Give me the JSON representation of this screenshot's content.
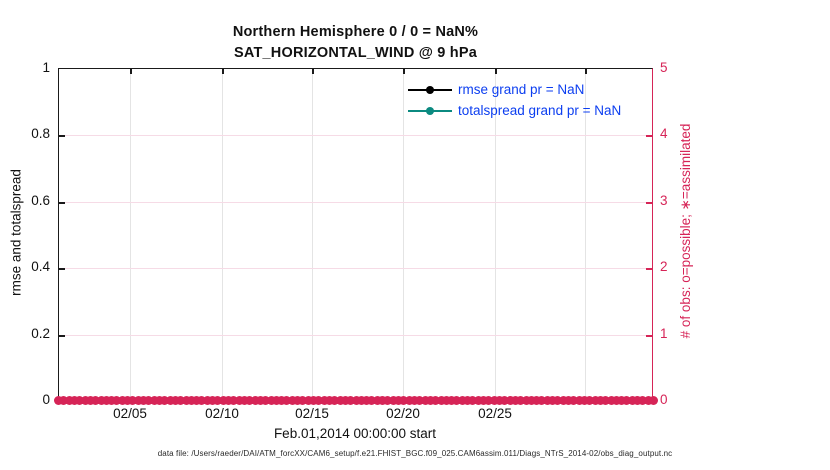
{
  "figure": {
    "title_line1": "Northern Hemisphere 0 / 0 = NaN%",
    "title_line2": "SAT_HORIZONTAL_WIND @ 9 hPa",
    "footer": "data file: /Users/raeder/DAI/ATM_forcXX/CAM6_setup/f.e21.FHIST_BGC.f09_025.CAM6assim.011/Diags_NTrS_2014-02/obs_diag_output.nc"
  },
  "axes": {
    "left_label": "rmse and totalspread",
    "right_label": "# of obs: o=possible; ∗=assimilated",
    "xlabel": "Feb.01,2014 00:00:00 start",
    "x_tick_labels": [
      "02/05",
      "02/10",
      "02/15",
      "02/20",
      "02/25"
    ],
    "y_left_ticks": [
      "1",
      "0.8",
      "0.6",
      "0.4",
      "0.2",
      "0"
    ],
    "y_right_ticks": [
      "5",
      "4",
      "3",
      "2",
      "1",
      "0"
    ]
  },
  "legend": {
    "text_color": "#0c3ef0",
    "items": [
      {
        "label": "rmse grand pr = NaN",
        "color": "#000000"
      },
      {
        "label": "totalspread grand pr = NaN",
        "color": "#0b8a80"
      }
    ]
  },
  "obs_markers": {
    "count": 113,
    "color": "#d62457",
    "shape": "circle",
    "value": 0
  },
  "colors": {
    "right_axis_crimson": "#d62457",
    "left_axis_black": "#1a1a1a",
    "grid_vertical_gray": "#e4e4e4",
    "grid_horizontal_pink": "#f6dbe6",
    "legend_text_blue": "#0c3ef0",
    "totalspread_teal": "#0b8a80"
  },
  "chart_data": {
    "type": "line",
    "title": "Northern Hemisphere 0 / 0 = NaN% — SAT_HORIZONTAL_WIND @ 9 hPa",
    "xlabel": "Feb.01,2014 00:00:00 start",
    "ylabel": "rmse and totalspread",
    "ylabel_right": "# of obs: o=possible; ∗=assimilated",
    "ylim_left": [
      0,
      1
    ],
    "ylim_right": [
      0,
      5
    ],
    "x_ticks": [
      "02/05",
      "02/10",
      "02/15",
      "02/20",
      "02/25"
    ],
    "y_ticks_left": [
      0,
      0.2,
      0.4,
      0.6,
      0.8,
      1
    ],
    "y_ticks_right": [
      0,
      1,
      2,
      3,
      4,
      5
    ],
    "grid": true,
    "legend_position": "upper center-right",
    "series": [
      {
        "name": "rmse grand pr = NaN",
        "axis": "left",
        "color": "#000000",
        "values": "all NaN — no curve plotted"
      },
      {
        "name": "totalspread grand pr = NaN",
        "axis": "left",
        "color": "#0b8a80",
        "values": "all NaN — no curve plotted"
      },
      {
        "name": "# of obs possible (o)",
        "axis": "right",
        "color": "#d62457",
        "values": "constant 0 at every 6-hourly time from Feb 01 through end of period"
      },
      {
        "name": "# of obs assimilated (∗)",
        "axis": "right",
        "color": "#d62457",
        "values": "constant 0 at every 6-hourly time from Feb 01 through end of period"
      }
    ],
    "stats": {
      "possible": 0,
      "used": 0,
      "percent": "NaN%"
    }
  }
}
